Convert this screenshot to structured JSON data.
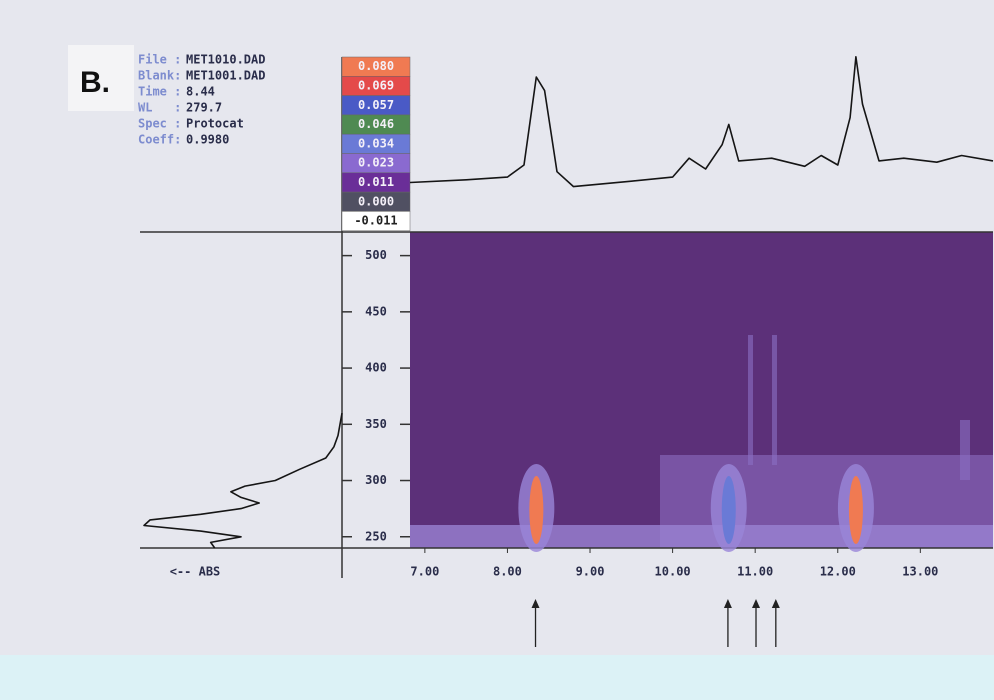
{
  "panel_label": "B.",
  "info": [
    {
      "key": "File :",
      "value": "MET1010.DAD"
    },
    {
      "key": "Blank:",
      "value": "MET1001.DAD"
    },
    {
      "key": "Time :",
      "value": "8.44"
    },
    {
      "key": "WL   :",
      "value": "279.7"
    },
    {
      "key": "Spec :",
      "value": "Protocat"
    },
    {
      "key": "Coeff:",
      "value": "0.9980"
    }
  ],
  "chart_data": [
    {
      "type": "heatmap",
      "xlim": [
        6.82,
        13.88
      ],
      "ylim": [
        240,
        521
      ],
      "xticks": [
        {
          "value": 7,
          "label": "7.00"
        },
        {
          "value": 8,
          "label": "8.00"
        },
        {
          "value": 9,
          "label": "9.00"
        },
        {
          "value": 10,
          "label": "10.00"
        },
        {
          "value": 11,
          "label": "11.00"
        },
        {
          "value": 12,
          "label": "12.00"
        },
        {
          "value": 13,
          "label": "13.00"
        }
      ],
      "yticks": [
        250,
        300,
        350,
        400,
        450,
        500
      ],
      "colorbar": {
        "ticks": [
          {
            "value": 0.08,
            "label": "0.080"
          },
          {
            "value": 0.069,
            "label": "0.069"
          },
          {
            "value": 0.057,
            "label": "0.057"
          },
          {
            "value": 0.046,
            "label": "0.046"
          },
          {
            "value": 0.034,
            "label": "0.034"
          },
          {
            "value": 0.023,
            "label": "0.023"
          },
          {
            "value": 0.011,
            "label": "0.011"
          },
          {
            "value": 0,
            "label": "0.000"
          },
          {
            "value": -0.011,
            "label": "-0.011"
          }
        ],
        "colors": [
          "#f07a52",
          "#e44a4a",
          "#4a5ac6",
          "#4f8a52",
          "#6a7ad6",
          "#8a6ad0",
          "#6a2e98",
          "#505062",
          "#ffffff"
        ]
      },
      "peaks": {
        "x": [
          8.35,
          10.68,
          12.22
        ],
        "values": [
          0.08,
          0.034,
          0.08
        ]
      },
      "arrows": [
        8.34,
        10.67,
        11.01,
        11.25
      ]
    },
    {
      "type": "line",
      "xlim": [
        6.82,
        13.88
      ],
      "ylim": [
        -0.005,
        0.1
      ],
      "color": "#151515",
      "x": [
        6.82,
        7.5,
        8.0,
        8.2,
        8.35,
        8.45,
        8.6,
        8.8,
        9.5,
        10.0,
        10.2,
        10.4,
        10.6,
        10.68,
        10.8,
        11.2,
        11.6,
        11.8,
        12.0,
        12.15,
        12.22,
        12.3,
        12.5,
        12.8,
        13.2,
        13.5,
        13.88
      ],
      "values": [
        0.002,
        0.004,
        0.006,
        0.015,
        0.08,
        0.07,
        0.01,
        -0.001,
        0.003,
        0.006,
        0.02,
        0.012,
        0.03,
        0.045,
        0.018,
        0.02,
        0.014,
        0.022,
        0.015,
        0.05,
        0.095,
        0.06,
        0.018,
        0.02,
        0.017,
        0.022,
        0.018
      ]
    },
    {
      "type": "line",
      "orientation": "vertical",
      "x_label": "<-- ABS",
      "xlim": [
        1,
        0
      ],
      "ylim": [
        240,
        521
      ],
      "color": "#151515",
      "y": [
        240,
        245,
        250,
        255,
        260,
        265,
        270,
        275,
        280,
        285,
        290,
        295,
        300,
        310,
        320,
        330,
        340,
        350,
        360
      ],
      "values": [
        0.63,
        0.65,
        0.5,
        0.7,
        0.98,
        0.95,
        0.7,
        0.5,
        0.41,
        0.5,
        0.55,
        0.48,
        0.33,
        0.21,
        0.08,
        0.04,
        0.02,
        0.01,
        0
      ]
    }
  ]
}
